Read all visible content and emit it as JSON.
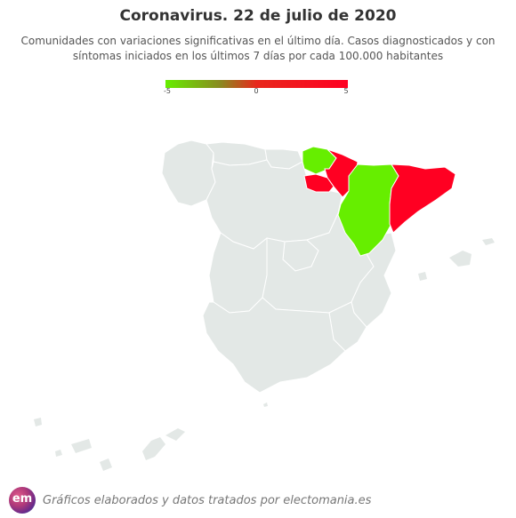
{
  "title": "Coronavirus. 22 de julio de 2020",
  "subtitle_line1": "Comunidades con variaciones significativas en el último día. Casos diagnosticados y con",
  "subtitle_line2": "síntomas iniciados en los últimos 7 días por cada 100.000 habitantes",
  "legend": {
    "min_label": "-5",
    "mid_label": "0",
    "max_label": "5",
    "colors": [
      "#66ee00",
      "#e8281c",
      "#ff0022"
    ]
  },
  "map": {
    "base_color": "#e3e8e6",
    "border_color": "#ffffff",
    "regions": [
      {
        "name": "Cantabria",
        "status": "neutral"
      },
      {
        "name": "País Vasco",
        "status": "decrease",
        "color": "#66ee00"
      },
      {
        "name": "Navarra",
        "status": "increase",
        "color": "#ff0022"
      },
      {
        "name": "La Rioja",
        "status": "increase",
        "color": "#ff0022"
      },
      {
        "name": "Aragón",
        "status": "decrease",
        "color": "#66ee00"
      },
      {
        "name": "Cataluña",
        "status": "increase",
        "color": "#ff0022"
      }
    ]
  },
  "footer": {
    "logo_text": "em",
    "credit": "Gráficos elaborados y datos tratados por electomania.es"
  }
}
